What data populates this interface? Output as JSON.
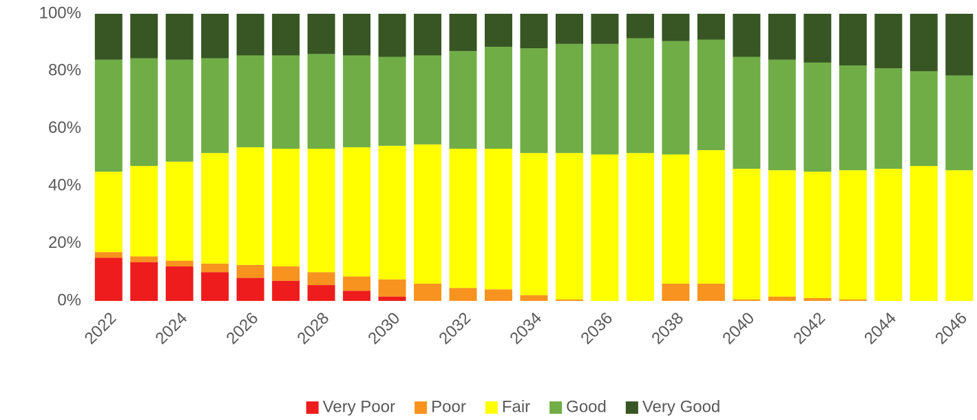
{
  "chart_data": {
    "type": "stacked_bar",
    "categories": [
      "2022",
      null,
      "2024",
      null,
      "2026",
      null,
      "2028",
      null,
      "2030",
      null,
      "2032",
      null,
      "2034",
      null,
      "2036",
      null,
      "2038",
      null,
      "2040",
      null,
      "2042",
      null,
      "2044",
      null,
      "2046"
    ],
    "series": [
      {
        "name": "Very Poor",
        "color": "#ee1c1c",
        "values": [
          15,
          13.5,
          12,
          10,
          8,
          7,
          5.5,
          3.5,
          1.5,
          0,
          0,
          0,
          0,
          0,
          0,
          0,
          0,
          0,
          0,
          0,
          0,
          0,
          0,
          0,
          0
        ]
      },
      {
        "name": "Poor",
        "color": "#f7931e",
        "values": [
          2,
          2,
          2,
          3,
          4.5,
          5,
          4.5,
          5,
          6,
          6,
          4.5,
          4,
          2,
          0.5,
          0,
          0,
          6,
          6,
          0.5,
          1.5,
          1,
          0.5,
          0,
          0,
          0
        ]
      },
      {
        "name": "Fair",
        "color": "#ffff00",
        "values": [
          28,
          31.5,
          34.5,
          38.5,
          41,
          41,
          43,
          45,
          46.5,
          48.5,
          48.5,
          49,
          49.5,
          51,
          51,
          51.5,
          45,
          46.5,
          45.5,
          44,
          44,
          45,
          46,
          47,
          45.5
        ]
      },
      {
        "name": "Good",
        "color": "#70ad47",
        "values": [
          39,
          37.5,
          35.5,
          33,
          32,
          32.5,
          33,
          32,
          31,
          31,
          34,
          35.5,
          36.5,
          38,
          38.5,
          40,
          39.5,
          38.5,
          39,
          38.5,
          38,
          36.5,
          35,
          33,
          33
        ]
      },
      {
        "name": "Very Good",
        "color": "#375623",
        "values": [
          16,
          15.5,
          16,
          15.5,
          14.5,
          14.5,
          14,
          14.5,
          15,
          14.5,
          13,
          11.5,
          12,
          10.5,
          10.5,
          8.5,
          9.5,
          9,
          15,
          16,
          17,
          18,
          19,
          20,
          21.5
        ]
      }
    ],
    "ylim": [
      0,
      100
    ],
    "yticks": [
      {
        "value": 0,
        "label": "0%"
      },
      {
        "value": 20,
        "label": "20%"
      },
      {
        "value": 40,
        "label": "40%"
      },
      {
        "value": 60,
        "label": "60%"
      },
      {
        "value": 80,
        "label": "80%"
      },
      {
        "value": 100,
        "label": "100%"
      }
    ],
    "legend": "bottom"
  }
}
